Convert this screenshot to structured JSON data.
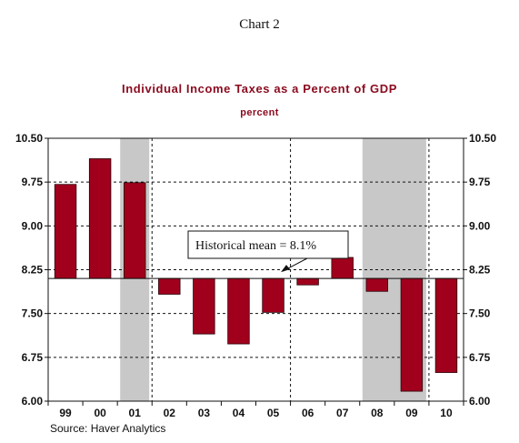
{
  "page": {
    "heading": "Chart 2",
    "source": "Source: Haver Analytics"
  },
  "chart_data": {
    "type": "bar",
    "title": "Individual Income Taxes as a Percent of GDP",
    "subtitle": "percent",
    "xlabel": "",
    "ylabel": "",
    "categories": [
      "99",
      "00",
      "01",
      "02",
      "03",
      "04",
      "05",
      "06",
      "07",
      "08",
      "09",
      "10"
    ],
    "values": [
      9.71,
      10.15,
      9.74,
      7.83,
      7.15,
      6.98,
      7.52,
      7.99,
      8.46,
      7.88,
      6.17,
      6.49
    ],
    "baseline": 8.1,
    "ylim": [
      6.0,
      10.5
    ],
    "yticks": [
      "10.50",
      "9.75",
      "9.00",
      "8.25",
      "7.50",
      "6.75",
      "6.00"
    ],
    "ytick_values": [
      10.5,
      9.75,
      9.0,
      8.25,
      7.5,
      6.75,
      6.0
    ],
    "recession_shading": [
      [
        "01",
        "01"
      ],
      [
        "08",
        "09"
      ]
    ],
    "annotation": "Historical mean = 8.1%",
    "grid": true,
    "axes_on_both_sides": true,
    "colors": {
      "bar": "#a0001c",
      "bar_edge": "#2a0008",
      "recession": "#c8c8c8",
      "title": "#8b0a1e"
    }
  }
}
